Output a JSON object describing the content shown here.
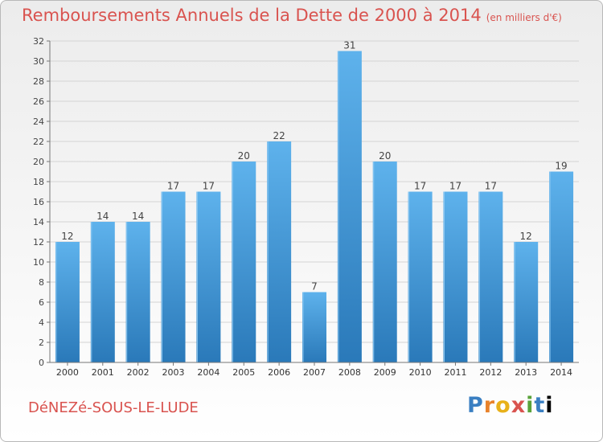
{
  "header": {
    "title": "Remboursements Annuels de la Dette de 2000 à 2014",
    "subtitle": "(en milliers d'€)"
  },
  "footer": {
    "commune": "DéNEZé-SOUS-LE-LUDE",
    "logo_letters": [
      "P",
      "r",
      "o",
      "x",
      "i",
      "t",
      "i"
    ]
  },
  "colors": {
    "bar_light": "#5eb2ec",
    "bar_dark": "#2a79b9",
    "title": "#d9534f"
  },
  "chart_data": {
    "type": "bar",
    "title": "Remboursements Annuels de la Dette de 2000 à 2014",
    "xlabel": "",
    "ylabel": "",
    "categories": [
      "2000",
      "2001",
      "2002",
      "2003",
      "2004",
      "2005",
      "2006",
      "2007",
      "2008",
      "2009",
      "2010",
      "2011",
      "2012",
      "2013",
      "2014"
    ],
    "values": [
      12,
      14,
      14,
      17,
      17,
      20,
      22,
      7,
      31,
      20,
      17,
      17,
      17,
      12,
      19
    ],
    "ylim": [
      0,
      32
    ],
    "yticks": [
      0,
      2,
      4,
      6,
      8,
      10,
      12,
      14,
      16,
      18,
      20,
      22,
      24,
      26,
      28,
      30,
      32
    ],
    "grid": true,
    "legend": "none",
    "data_labels": true
  }
}
